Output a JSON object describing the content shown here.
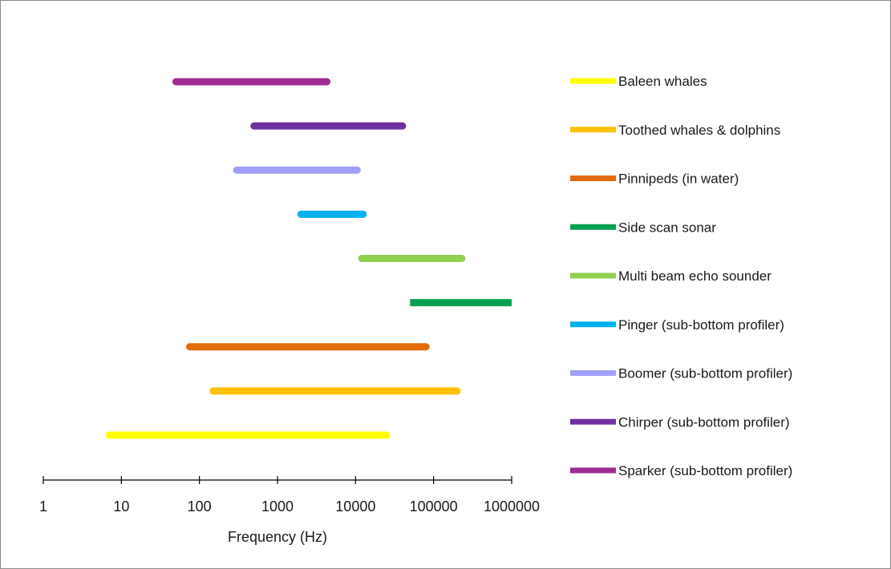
{
  "chart_data": {
    "type": "bar",
    "orientation": "horizontal-range",
    "xlabel": "Frequency (Hz)",
    "xscale": "log",
    "xlim": [
      1,
      1000000
    ],
    "xticks": [
      "1",
      "10",
      "100",
      "1000",
      "10000",
      "100000",
      "1000000"
    ],
    "grid": false,
    "legend_position": "right",
    "series": [
      {
        "name": "Baleen whales",
        "color": "#ffff00",
        "min": 7,
        "max": 25000
      },
      {
        "name": "Toothed whales & dolphins",
        "color": "#ffc000",
        "min": 150,
        "max": 200000
      },
      {
        "name": "Pinnipeds (in water)",
        "color": "#e36c0a",
        "min": 75,
        "max": 80000
      },
      {
        "name": "Side scan sonar",
        "color": "#00a050",
        "min": 50000,
        "max": 1000000
      },
      {
        "name": "Multi beam echo sounder",
        "color": "#92d050",
        "min": 12000,
        "max": 230000
      },
      {
        "name": "Pinger (sub-bottom profiler)",
        "color": "#00b0f0",
        "min": 2000,
        "max": 12500
      },
      {
        "name": "Boomer (sub-bottom profiler)",
        "color": "#a0a0f8",
        "min": 300,
        "max": 10500
      },
      {
        "name": "Chirper (sub-bottom profiler)",
        "color": "#7030a0",
        "min": 500,
        "max": 40000
      },
      {
        "name": "Sparker (sub-bottom profiler)",
        "color": "#a02b93",
        "min": 50,
        "max": 4300
      }
    ]
  }
}
